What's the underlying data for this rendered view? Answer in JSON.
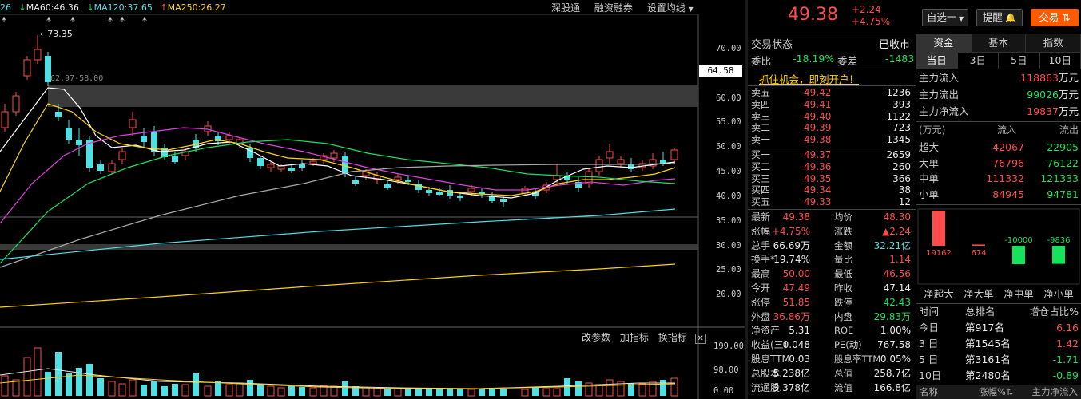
{
  "chart": {
    "ma_labels": [
      {
        "text": "26",
        "color": "#4fe0e6"
      },
      {
        "text": "MA60:46.36",
        "color": "#e8e8e8",
        "arrow": "↓"
      },
      {
        "text": "MA120:37.65",
        "color": "#4fe0e6",
        "arrow": "↓"
      },
      {
        "text": "MA250:26.27",
        "color": "#ffd400",
        "arrow": "↑"
      }
    ],
    "toolbar_links": [
      "深股通",
      "融资融券",
      "设置均线"
    ],
    "high_marker": "73.35",
    "range_label": "62.97-58.00",
    "price_axis": [
      "70.00",
      "65.00",
      "60.00",
      "55.00",
      "50.00",
      "45.00",
      "40.00",
      "35.00",
      "30.00",
      "25.00",
      "20.00"
    ],
    "current_price_tag": "64.58",
    "indicator_links": [
      "改参数",
      "加指标",
      "换指标"
    ],
    "volume_axis": [
      "199.00",
      "98.00",
      "0.00"
    ],
    "close_symbol": "✕"
  },
  "header": {
    "price": "49.38",
    "change": "+2.24",
    "change_pct": "+4.75%",
    "watchlist_label": "自选一",
    "remind_label": "提醒",
    "trade_label": "交易"
  },
  "status": {
    "label": "交易状态",
    "value": "已收市",
    "weibi_label": "委比",
    "weibi_value": "-18.19%",
    "weicha_label": "委差",
    "weicha_value": "-1483"
  },
  "promo": "抓住机会，即刻开户！",
  "order_book": {
    "asks": [
      {
        "label": "卖五",
        "price": "49.42",
        "vol": "1236"
      },
      {
        "label": "卖四",
        "price": "49.41",
        "vol": "393"
      },
      {
        "label": "卖三",
        "price": "49.40",
        "vol": "1122"
      },
      {
        "label": "卖二",
        "price": "49.39",
        "vol": "723"
      },
      {
        "label": "卖一",
        "price": "49.38",
        "vol": "1345"
      }
    ],
    "bids": [
      {
        "label": "买一",
        "price": "49.37",
        "vol": "2659"
      },
      {
        "label": "买二",
        "price": "49.36",
        "vol": "260"
      },
      {
        "label": "买三",
        "price": "49.35",
        "vol": "366"
      },
      {
        "label": "买四",
        "price": "49.34",
        "vol": "38"
      },
      {
        "label": "买五",
        "price": "49.33",
        "vol": "12"
      }
    ]
  },
  "quote": [
    {
      "l1": "最新",
      "v1": "49.38",
      "c1": "red",
      "l2": "均价",
      "v2": "48.30",
      "c2": "red"
    },
    {
      "l1": "涨幅",
      "v1": "+4.75%",
      "c1": "red",
      "l2": "涨跌",
      "v2": "▲2.24",
      "c2": "red"
    },
    {
      "l1": "总手",
      "v1": "66.69万",
      "c1": "white",
      "l2": "金额",
      "v2": "32.21亿",
      "c2": "cyan"
    },
    {
      "l1": "换手*",
      "v1": "19.74%",
      "c1": "white",
      "l2": "量比",
      "v2": "1.14",
      "c2": "red"
    },
    {
      "l1": "最高",
      "v1": "50.00",
      "c1": "red",
      "l2": "最低",
      "v2": "46.56",
      "c2": "red"
    },
    {
      "l1": "今开",
      "v1": "47.49",
      "c1": "red",
      "l2": "昨收",
      "v2": "47.14",
      "c2": "white"
    },
    {
      "l1": "涨停",
      "v1": "51.85",
      "c1": "red",
      "l2": "跌停",
      "v2": "42.43",
      "c2": "green"
    },
    {
      "l1": "外盘",
      "v1": "36.86万",
      "c1": "red",
      "l2": "内盘",
      "v2": "29.83万",
      "c2": "green"
    },
    {
      "l1": "净资产",
      "v1": "5.31",
      "c1": "white",
      "l2": "ROE",
      "v2": "1.00%",
      "c2": "white"
    },
    {
      "l1": "收益(三)",
      "v1": "0.048",
      "c1": "white",
      "l2": "PE(动)",
      "v2": "767.58",
      "c2": "white"
    },
    {
      "l1": "股息TTM",
      "v1": "0.03",
      "c1": "white",
      "l2": "股息率TTM",
      "v2": "0.05%",
      "c2": "white"
    },
    {
      "l1": "总股本",
      "v1": "5.238亿",
      "c1": "white",
      "l2": "总值",
      "v2": "258.7亿",
      "c2": "white"
    },
    {
      "l1": "流通股",
      "v1": "3.378亿",
      "c1": "white",
      "l2": "流值",
      "v2": "166.8亿",
      "c2": "white"
    }
  ],
  "fund": {
    "tabs": [
      "资金",
      "基本",
      "指数"
    ],
    "period_tabs": [
      "当日",
      "3日",
      "5日",
      "10日"
    ],
    "flows": [
      {
        "label": "主力流入",
        "value": "118863",
        "unit": "万元",
        "color": "red"
      },
      {
        "label": "主力流出",
        "value": "99026",
        "unit": "万元",
        "color": "green"
      },
      {
        "label": "主力净流入",
        "value": "19837",
        "unit": "万元",
        "color": "red"
      }
    ],
    "table_header": [
      "(万元)",
      "流入",
      "流出"
    ],
    "table": [
      {
        "label": "超大",
        "in": "42067",
        "out": "22905"
      },
      {
        "label": "大单",
        "in": "76796",
        "out": "76122"
      },
      {
        "label": "中单",
        "in": "111332",
        "out": "121333"
      },
      {
        "label": "小单",
        "in": "84945",
        "out": "94781"
      }
    ],
    "bars": [
      {
        "label": "净超大",
        "value": 19162,
        "text": "19162"
      },
      {
        "label": "净大单",
        "value": 674,
        "text": "674"
      },
      {
        "label": "净中单",
        "value": -10000,
        "text": "-10000"
      },
      {
        "label": "净小单",
        "value": -9836,
        "text": "-9836"
      }
    ],
    "rank_header": [
      "时间",
      "总排名",
      "增仓占比%"
    ],
    "ranks": [
      {
        "t": "今日",
        "r": "第917名",
        "v": "6.16"
      },
      {
        "t": "3 日",
        "r": "第1545名",
        "v": "1.42"
      },
      {
        "t": "5 日",
        "r": "第3161名",
        "v": "-1.71"
      },
      {
        "t": "10日",
        "r": "第2480名",
        "v": "-0.89"
      }
    ],
    "footer": [
      "名称",
      "涨幅%",
      "主力净流入"
    ]
  }
}
